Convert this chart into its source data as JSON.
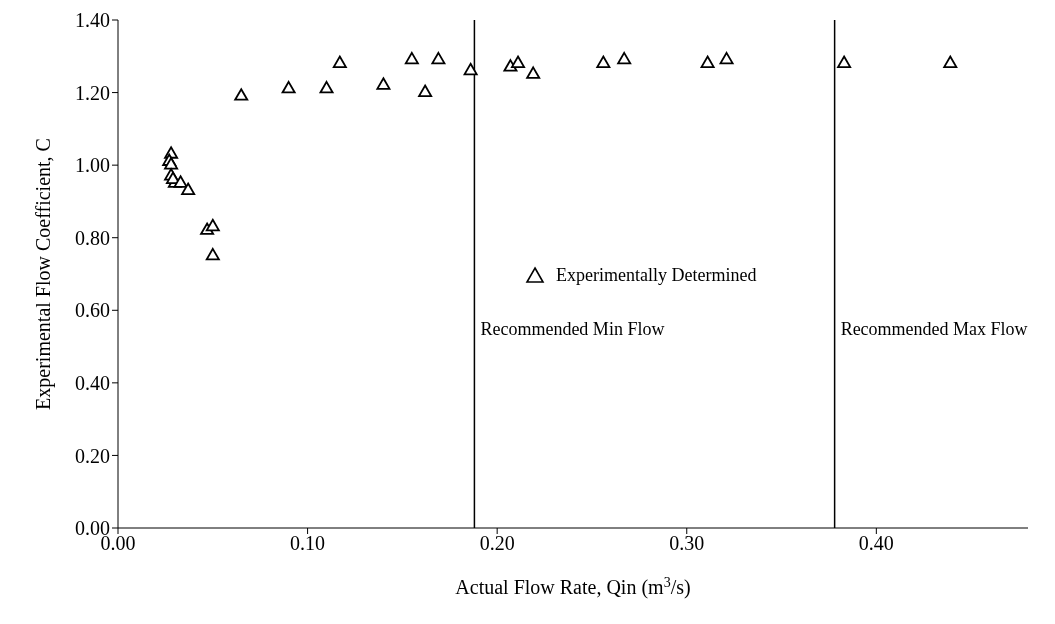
{
  "chart_data": {
    "type": "scatter",
    "xlabel": "Actual Flow Rate, Qin (m$^{3}$/s)",
    "ylabel": "Experimental Flow Coefficient, C",
    "xlim": [
      0,
      0.48
    ],
    "xticks": [
      {
        "value": 0,
        "label": "0.00"
      },
      {
        "value": 0.1,
        "label": "0.10"
      },
      {
        "value": 0.2,
        "label": "0.20"
      },
      {
        "value": 0.3,
        "label": "0.30"
      },
      {
        "value": 0.4,
        "label": "0.40"
      }
    ],
    "ylim": [
      0,
      1.4
    ],
    "yticks": [
      {
        "value": 0,
        "label": "0.00"
      },
      {
        "value": 0.2,
        "label": "0.20"
      },
      {
        "value": 0.4,
        "label": "0.40"
      },
      {
        "value": 0.6,
        "label": "0.60"
      },
      {
        "value": 0.8,
        "label": "0.80"
      },
      {
        "value": 1,
        "label": "1.00"
      },
      {
        "value": 1.2,
        "label": "1.20"
      },
      {
        "value": 1.4,
        "label": "1.40"
      }
    ],
    "series": [
      {
        "name": "Experimentally Determined",
        "color": "#000000",
        "x": [
          0.028,
          0.027,
          0.028,
          0.028,
          0.03,
          0.029,
          0.033,
          0.037,
          0.047,
          0.05,
          0.05,
          0.065,
          0.09,
          0.11,
          0.117,
          0.14,
          0.155,
          0.162,
          0.169,
          0.186,
          0.207,
          0.211,
          0.219,
          0.256,
          0.267,
          0.311,
          0.321,
          0.383,
          0.439
        ],
        "values": [
          1.03,
          1.01,
          1.0,
          0.97,
          0.95,
          0.96,
          0.95,
          0.93,
          0.82,
          0.83,
          0.75,
          1.19,
          1.21,
          1.21,
          1.28,
          1.22,
          1.29,
          1.2,
          1.29,
          1.26,
          1.27,
          1.28,
          1.25,
          1.28,
          1.29,
          1.28,
          1.29,
          1.28,
          1.28
        ]
      }
    ],
    "marker": "triangle",
    "grid": false,
    "legend": "right",
    "ref_lines": [
      {
        "axis": "x",
        "value": 0.188,
        "label": "Recommended Min Flow",
        "color": "#000000"
      },
      {
        "axis": "x",
        "value": 0.378,
        "label": "Recommended Max Flow",
        "color": "#000000"
      }
    ]
  }
}
